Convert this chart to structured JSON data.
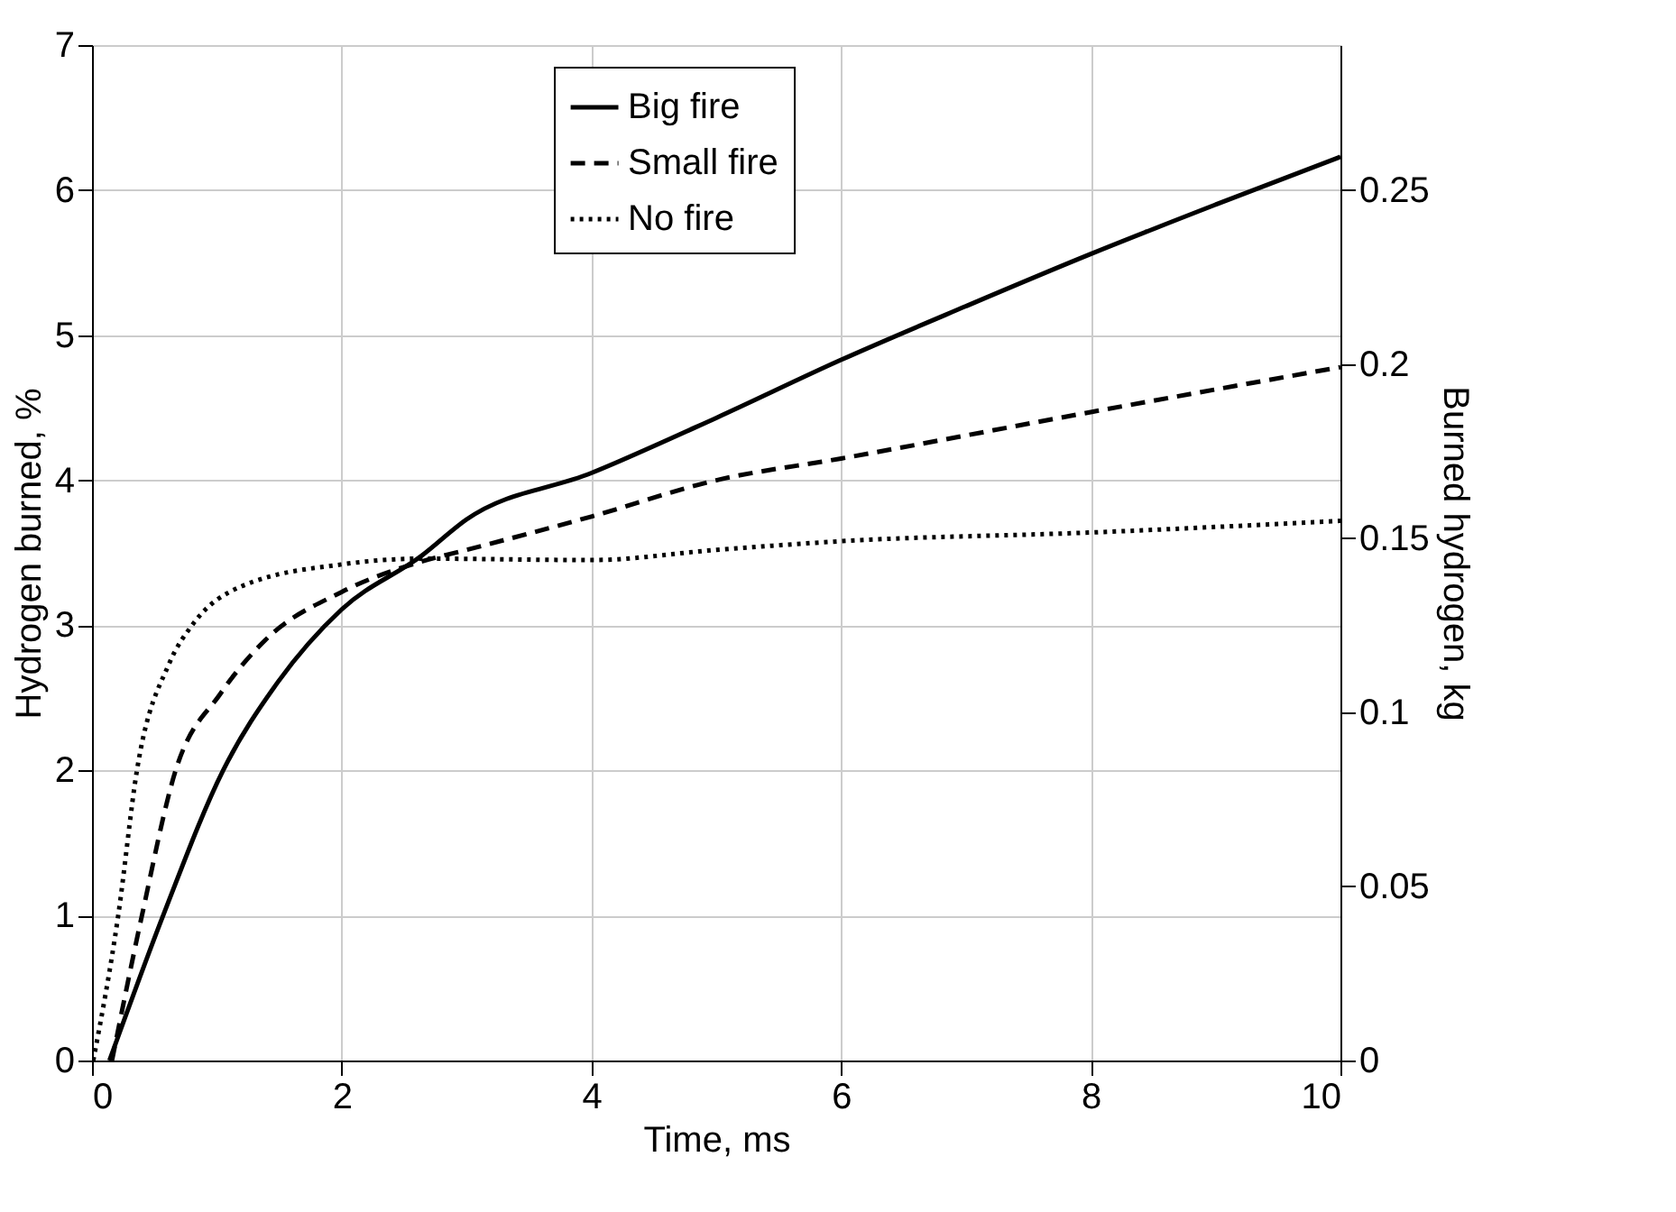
{
  "chart_data": {
    "type": "line",
    "xlabel": "Time, ms",
    "ylabel": "Hydrogen burned, %",
    "y2label": "Burned hydrogen, kg",
    "xlim": [
      0,
      10
    ],
    "xticks": [
      0,
      2,
      4,
      6,
      8,
      10
    ],
    "ylim": [
      0,
      7
    ],
    "yticks": [
      0,
      1,
      2,
      3,
      4,
      5,
      6,
      7
    ],
    "y2lim": [
      0,
      0.2917
    ],
    "y2ticks": [
      0,
      0.05,
      0.1,
      0.15,
      0.2,
      0.25
    ],
    "grid": true,
    "legend": "top",
    "marker": "none",
    "series": [
      {
        "name": "Big fire",
        "color": "#000000",
        "line_style": "solid",
        "x": [
          0.14,
          0.57,
          1.05,
          1.49,
          2.0,
          2.64,
          3.0,
          4.0,
          5.0,
          6.0,
          7.0,
          8.0,
          9.0,
          10.0
        ],
        "values": [
          0,
          1,
          2,
          2.61,
          3.11,
          3.48,
          3.73,
          4.05,
          4.43,
          4.83,
          5.2,
          5.56,
          5.9,
          6.23
        ]
      },
      {
        "name": "Small fire",
        "color": "#000000",
        "line_style": "dashed",
        "x": [
          0.16,
          0.4,
          0.67,
          1.03,
          1.39,
          2.0,
          2.64,
          3.0,
          4.0,
          5.0,
          6.0,
          8.0,
          10.0
        ],
        "values": [
          0,
          1,
          2,
          2.53,
          2.9,
          3.23,
          3.44,
          3.52,
          3.75,
          4.0,
          4.15,
          4.47,
          4.78
        ]
      },
      {
        "name": "No fire",
        "color": "#000000",
        "line_style": "dotted",
        "x": [
          0.01,
          0.21,
          0.36,
          0.62,
          0.81,
          1.2,
          2.0,
          2.64,
          4.0,
          5.0,
          6.0,
          8.0,
          10.0
        ],
        "values": [
          0,
          1,
          2,
          2.74,
          3.01,
          3.27,
          3.42,
          3.46,
          3.45,
          3.52,
          3.58,
          3.64,
          3.72
        ]
      }
    ]
  }
}
